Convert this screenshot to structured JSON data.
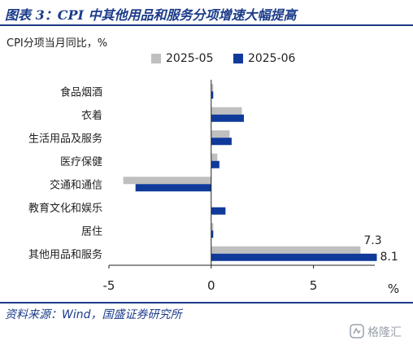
{
  "title": "图表 3：CPI 中其他用品和服务分项增速大幅提高",
  "unit_label": "CPI分项当月同比，%",
  "source": "资料来源：Wind，国盛证券研究所",
  "watermark": "格隆汇",
  "colors": {
    "series_2025_05": "#bfbfbf",
    "series_2025_06": "#0f3a9a",
    "accent": "#1b3b8a"
  },
  "chart_data": {
    "type": "bar",
    "orientation": "horizontal",
    "categories": [
      "食品烟酒",
      "衣着",
      "生活用品及服务",
      "医疗保健",
      "交通和通信",
      "教育文化和娱乐",
      "居住",
      "其他用品和服务"
    ],
    "series": [
      {
        "name": "2025-05",
        "values": [
          0.1,
          1.5,
          0.9,
          0.3,
          -4.3,
          0.0,
          0.1,
          7.3
        ]
      },
      {
        "name": "2025-06",
        "values": [
          0.1,
          1.6,
          1.0,
          0.4,
          -3.7,
          0.7,
          0.1,
          8.1
        ]
      }
    ],
    "data_labels": [
      {
        "series": "2025-05",
        "category": "其他用品和服务",
        "text": "7.3"
      },
      {
        "series": "2025-06",
        "category": "其他用品和服务",
        "text": "8.1"
      }
    ],
    "xlim": [
      -5,
      8
    ],
    "xticks": [
      -5,
      0,
      5
    ],
    "xlabel": "%",
    "ylabel": "",
    "legend_position": "top",
    "grid": false
  }
}
